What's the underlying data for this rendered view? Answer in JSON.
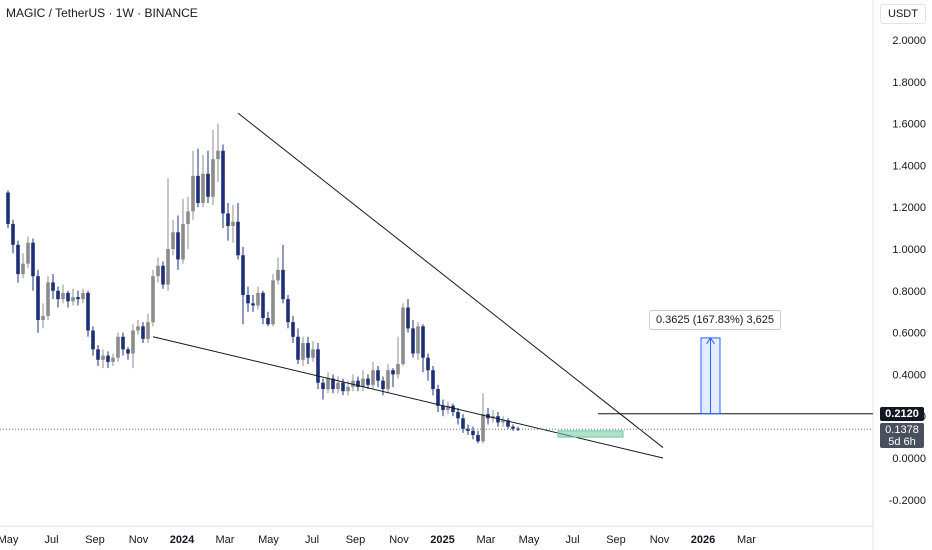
{
  "header": {
    "title": "MAGIC / TetherUS · 1W · BINANCE"
  },
  "axis": {
    "currency": "USDT"
  },
  "price": {
    "current": "0.2120",
    "last": "0.1378",
    "countdown": "5d 6h"
  },
  "measure": {
    "label": "0.3625 (167.83%) 3,625",
    "from": 0.212,
    "to": 0.5745
  },
  "colors": {
    "up": "#8c8c8c",
    "down": "#1e2f78",
    "line": "#131722",
    "measure": "#2962ff",
    "zone": "#6ec8a0"
  },
  "chart_data": {
    "type": "candlestick",
    "ylim": [
      -0.28,
      2.08
    ],
    "y_ticks": [
      2.0,
      1.8,
      1.6,
      1.4,
      1.2,
      1.0,
      0.8,
      0.6,
      0.4,
      0.2,
      0.0,
      -0.2
    ],
    "y_tick_labels": [
      "2.0000",
      "1.8000",
      "1.6000",
      "1.4000",
      "1.2000",
      "1.0000",
      "0.8000",
      "0.6000",
      "0.4000",
      "0.2000",
      "0.0000",
      "-0.2000"
    ],
    "x_ticks": [
      {
        "label": "May",
        "week": 0
      },
      {
        "label": "Jul",
        "week": 8.7
      },
      {
        "label": "Sep",
        "week": 17.4
      },
      {
        "label": "Nov",
        "week": 26.1
      },
      {
        "label": "2024",
        "week": 34.8
      },
      {
        "label": "Mar",
        "week": 43.4
      },
      {
        "label": "May",
        "week": 52.1
      },
      {
        "label": "Jul",
        "week": 60.8
      },
      {
        "label": "Sep",
        "week": 69.5
      },
      {
        "label": "Nov",
        "week": 78.2
      },
      {
        "label": "2025",
        "week": 86.9
      },
      {
        "label": "Mar",
        "week": 95.6
      },
      {
        "label": "May",
        "week": 104.2
      },
      {
        "label": "Jul",
        "week": 112.9
      },
      {
        "label": "Sep",
        "week": 121.6
      },
      {
        "label": "Nov",
        "week": 130.3
      },
      {
        "label": "2026",
        "week": 139.0
      },
      {
        "label": "Mar",
        "week": 147.7
      }
    ],
    "candles": [
      [
        1.27,
        1.12,
        1.28,
        1.1
      ],
      [
        1.12,
        1.02,
        1.14,
        0.98
      ],
      [
        1.02,
        0.88,
        1.04,
        0.84
      ],
      [
        0.88,
        0.93,
        0.98,
        0.86
      ],
      [
        0.93,
        1.03,
        1.06,
        0.91
      ],
      [
        1.03,
        0.87,
        1.05,
        0.8
      ],
      [
        0.87,
        0.66,
        0.9,
        0.6
      ],
      [
        0.66,
        0.68,
        0.74,
        0.62
      ],
      [
        0.68,
        0.84,
        0.87,
        0.66
      ],
      [
        0.84,
        0.8,
        0.88,
        0.76
      ],
      [
        0.8,
        0.76,
        0.82,
        0.72
      ],
      [
        0.76,
        0.79,
        0.83,
        0.74
      ],
      [
        0.79,
        0.75,
        0.8,
        0.72
      ],
      [
        0.75,
        0.77,
        0.81,
        0.73
      ],
      [
        0.77,
        0.76,
        0.8,
        0.73
      ],
      [
        0.76,
        0.79,
        0.81,
        0.74
      ],
      [
        0.79,
        0.61,
        0.8,
        0.58
      ],
      [
        0.61,
        0.52,
        0.63,
        0.49
      ],
      [
        0.52,
        0.47,
        0.54,
        0.44
      ],
      [
        0.47,
        0.49,
        0.52,
        0.43
      ],
      [
        0.49,
        0.46,
        0.51,
        0.43
      ],
      [
        0.46,
        0.48,
        0.5,
        0.44
      ],
      [
        0.48,
        0.58,
        0.6,
        0.46
      ],
      [
        0.58,
        0.52,
        0.6,
        0.49
      ],
      [
        0.52,
        0.5,
        0.53,
        0.47
      ],
      [
        0.5,
        0.61,
        0.64,
        0.43
      ],
      [
        0.61,
        0.63,
        0.66,
        0.59
      ],
      [
        0.63,
        0.57,
        0.65,
        0.55
      ],
      [
        0.57,
        0.65,
        0.69,
        0.55
      ],
      [
        0.65,
        0.87,
        0.9,
        0.63
      ],
      [
        0.87,
        0.92,
        0.96,
        0.84
      ],
      [
        0.92,
        0.83,
        0.94,
        0.81
      ],
      [
        0.83,
        1.0,
        1.34,
        0.8
      ],
      [
        1.0,
        1.08,
        1.14,
        0.97
      ],
      [
        1.08,
        0.95,
        1.16,
        0.9
      ],
      [
        0.95,
        1.12,
        1.24,
        0.93
      ],
      [
        1.12,
        1.18,
        1.25,
        1.0
      ],
      [
        1.18,
        1.35,
        1.47,
        1.14
      ],
      [
        1.35,
        1.22,
        1.48,
        1.2
      ],
      [
        1.22,
        1.36,
        1.45,
        1.2
      ],
      [
        1.36,
        1.25,
        1.47,
        1.22
      ],
      [
        1.25,
        1.43,
        1.57,
        1.21
      ],
      [
        1.43,
        1.47,
        1.6,
        1.32
      ],
      [
        1.47,
        1.17,
        1.5,
        1.1
      ],
      [
        1.17,
        1.11,
        1.22,
        1.04
      ],
      [
        1.11,
        1.13,
        1.21,
        1.03
      ],
      [
        1.13,
        0.97,
        1.22,
        0.95
      ],
      [
        0.97,
        0.78,
        1.01,
        0.64
      ],
      [
        0.78,
        0.74,
        0.82,
        0.7
      ],
      [
        0.74,
        0.73,
        0.78,
        0.7
      ],
      [
        0.73,
        0.79,
        0.82,
        0.71
      ],
      [
        0.79,
        0.67,
        0.8,
        0.64
      ],
      [
        0.67,
        0.64,
        0.7,
        0.63
      ],
      [
        0.64,
        0.85,
        0.88,
        0.63
      ],
      [
        0.85,
        0.9,
        0.96,
        0.83
      ],
      [
        0.9,
        0.76,
        1.02,
        0.74
      ],
      [
        0.76,
        0.65,
        0.78,
        0.62
      ],
      [
        0.65,
        0.58,
        0.68,
        0.55
      ],
      [
        0.58,
        0.47,
        0.62,
        0.45
      ],
      [
        0.47,
        0.55,
        0.58,
        0.44
      ],
      [
        0.55,
        0.48,
        0.58,
        0.45
      ],
      [
        0.48,
        0.52,
        0.56,
        0.46
      ],
      [
        0.52,
        0.36,
        0.55,
        0.33
      ],
      [
        0.36,
        0.33,
        0.38,
        0.28
      ],
      [
        0.33,
        0.38,
        0.41,
        0.31
      ],
      [
        0.38,
        0.33,
        0.4,
        0.31
      ],
      [
        0.33,
        0.36,
        0.39,
        0.31
      ],
      [
        0.36,
        0.32,
        0.38,
        0.3
      ],
      [
        0.32,
        0.34,
        0.37,
        0.3
      ],
      [
        0.34,
        0.37,
        0.4,
        0.32
      ],
      [
        0.37,
        0.34,
        0.39,
        0.32
      ],
      [
        0.34,
        0.38,
        0.42,
        0.32
      ],
      [
        0.38,
        0.35,
        0.4,
        0.33
      ],
      [
        0.35,
        0.42,
        0.46,
        0.33
      ],
      [
        0.42,
        0.37,
        0.44,
        0.34
      ],
      [
        0.37,
        0.33,
        0.39,
        0.3
      ],
      [
        0.33,
        0.42,
        0.45,
        0.31
      ],
      [
        0.42,
        0.4,
        0.43,
        0.34
      ],
      [
        0.4,
        0.45,
        0.58,
        0.38
      ],
      [
        0.45,
        0.72,
        0.74,
        0.44
      ],
      [
        0.72,
        0.62,
        0.76,
        0.6
      ],
      [
        0.62,
        0.5,
        0.66,
        0.48
      ],
      [
        0.5,
        0.63,
        0.65,
        0.47
      ],
      [
        0.63,
        0.48,
        0.64,
        0.41
      ],
      [
        0.48,
        0.42,
        0.5,
        0.37
      ],
      [
        0.42,
        0.33,
        0.44,
        0.3
      ],
      [
        0.33,
        0.25,
        0.35,
        0.22
      ],
      [
        0.25,
        0.23,
        0.28,
        0.2
      ],
      [
        0.23,
        0.25,
        0.27,
        0.21
      ],
      [
        0.25,
        0.22,
        0.26,
        0.2
      ],
      [
        0.22,
        0.19,
        0.24,
        0.16
      ],
      [
        0.19,
        0.14,
        0.21,
        0.12
      ],
      [
        0.14,
        0.13,
        0.16,
        0.11
      ],
      [
        0.13,
        0.11,
        0.15,
        0.09
      ],
      [
        0.11,
        0.08,
        0.13,
        0.07
      ],
      [
        0.08,
        0.21,
        0.31,
        0.07
      ],
      [
        0.21,
        0.19,
        0.24,
        0.16
      ],
      [
        0.19,
        0.2,
        0.23,
        0.17
      ],
      [
        0.2,
        0.17,
        0.22,
        0.15
      ],
      [
        0.17,
        0.18,
        0.2,
        0.15
      ],
      [
        0.18,
        0.15,
        0.19,
        0.14
      ],
      [
        0.15,
        0.14,
        0.16,
        0.13
      ],
      [
        0.14,
        0.138,
        0.15,
        0.13
      ]
    ],
    "trendlines": [
      {
        "name": "upper-trendline",
        "from": [
          46,
          1.65
        ],
        "to": [
          131,
          0.05
        ]
      },
      {
        "name": "lower-trendline",
        "from": [
          29,
          0.58
        ],
        "to": [
          131,
          0.0
        ]
      }
    ],
    "support_zone": {
      "from_week": 110,
      "to_week": 123,
      "low": 0.1,
      "high": 0.13
    },
    "current_line_value": 0.212,
    "last_price_value": 0.1378
  }
}
